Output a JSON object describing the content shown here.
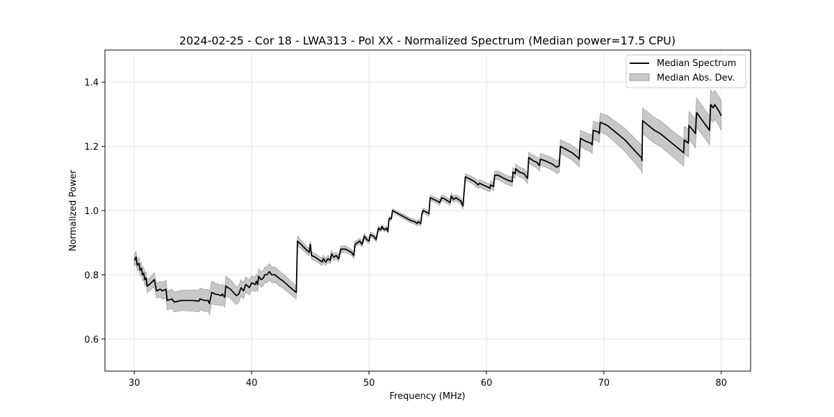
{
  "chart_data": {
    "type": "line",
    "title": "2024-02-25 - Cor 18 - LWA313 - Pol XX - Normalized Spectrum (Median power=17.5 CPU)",
    "xlabel": "Frequency (MHz)",
    "ylabel": "Normalized Power",
    "xlim": [
      27.5,
      82.5
    ],
    "ylim": [
      0.5,
      1.5
    ],
    "xticks": [
      30,
      40,
      50,
      60,
      70,
      80
    ],
    "yticks": [
      0.6,
      0.8,
      1.0,
      1.2,
      1.4
    ],
    "xtick_labels": [
      "30",
      "40",
      "50",
      "60",
      "70",
      "80"
    ],
    "ytick_labels": [
      "0.6",
      "0.8",
      "1.0",
      "1.2",
      "1.4"
    ],
    "grid": true,
    "legend_position": "top-right",
    "legend": [
      "Median Spectrum",
      "Median Abs. Dev."
    ],
    "colors": {
      "line": "#000000",
      "band": "#c8c8c8",
      "band_edge": "#a0a0a0",
      "grid": "#e6e6e6"
    },
    "series": [
      {
        "name": "Median Spectrum",
        "points": [
          [
            30.0,
            0.845
          ],
          [
            30.15,
            0.855
          ],
          [
            30.25,
            0.83
          ],
          [
            30.4,
            0.835
          ],
          [
            30.5,
            0.815
          ],
          [
            30.6,
            0.82
          ],
          [
            30.7,
            0.8
          ],
          [
            30.8,
            0.805
          ],
          [
            30.9,
            0.785
          ],
          [
            31.0,
            0.79
          ],
          [
            31.1,
            0.765
          ],
          [
            31.3,
            0.77
          ],
          [
            31.7,
            0.785
          ],
          [
            31.9,
            0.75
          ],
          [
            32.2,
            0.755
          ],
          [
            32.4,
            0.75
          ],
          [
            32.7,
            0.755
          ],
          [
            32.8,
            0.72
          ],
          [
            33.2,
            0.725
          ],
          [
            33.4,
            0.715
          ],
          [
            34.0,
            0.72
          ],
          [
            35.0,
            0.72
          ],
          [
            35.5,
            0.718
          ],
          [
            35.6,
            0.725
          ],
          [
            36.0,
            0.72
          ],
          [
            36.3,
            0.72
          ],
          [
            36.4,
            0.71
          ],
          [
            36.6,
            0.745
          ],
          [
            36.9,
            0.74
          ],
          [
            37.2,
            0.738
          ],
          [
            37.4,
            0.735
          ],
          [
            37.5,
            0.74
          ],
          [
            37.7,
            0.73
          ],
          [
            37.8,
            0.765
          ],
          [
            38.2,
            0.755
          ],
          [
            38.7,
            0.735
          ],
          [
            38.9,
            0.74
          ],
          [
            39.1,
            0.76
          ],
          [
            39.3,
            0.75
          ],
          [
            39.5,
            0.77
          ],
          [
            39.8,
            0.76
          ],
          [
            40.0,
            0.775
          ],
          [
            40.3,
            0.77
          ],
          [
            40.4,
            0.78
          ],
          [
            40.5,
            0.77
          ],
          [
            40.6,
            0.795
          ],
          [
            40.8,
            0.785
          ],
          [
            41.0,
            0.79
          ],
          [
            41.1,
            0.8
          ],
          [
            41.3,
            0.8
          ],
          [
            41.5,
            0.81
          ],
          [
            41.7,
            0.8
          ],
          [
            42.0,
            0.8
          ],
          [
            42.3,
            0.79
          ],
          [
            42.7,
            0.78
          ],
          [
            43.0,
            0.77
          ],
          [
            43.3,
            0.76
          ],
          [
            43.8,
            0.745
          ],
          [
            43.9,
            0.905
          ],
          [
            44.2,
            0.895
          ],
          [
            44.6,
            0.88
          ],
          [
            44.9,
            0.87
          ],
          [
            45.0,
            0.895
          ],
          [
            45.1,
            0.86
          ],
          [
            45.4,
            0.855
          ],
          [
            45.6,
            0.85
          ],
          [
            45.8,
            0.845
          ],
          [
            46.0,
            0.84
          ],
          [
            46.1,
            0.85
          ],
          [
            46.3,
            0.84
          ],
          [
            46.5,
            0.85
          ],
          [
            46.7,
            0.845
          ],
          [
            46.8,
            0.865
          ],
          [
            47.0,
            0.855
          ],
          [
            47.2,
            0.86
          ],
          [
            47.4,
            0.85
          ],
          [
            47.6,
            0.88
          ],
          [
            48.0,
            0.88
          ],
          [
            48.5,
            0.87
          ],
          [
            48.7,
            0.86
          ],
          [
            48.8,
            0.895
          ],
          [
            49.0,
            0.9
          ],
          [
            49.2,
            0.905
          ],
          [
            49.4,
            0.895
          ],
          [
            49.6,
            0.92
          ],
          [
            49.8,
            0.91
          ],
          [
            50.0,
            0.905
          ],
          [
            50.1,
            0.925
          ],
          [
            50.4,
            0.92
          ],
          [
            50.6,
            0.91
          ],
          [
            50.8,
            0.945
          ],
          [
            51.0,
            0.94
          ],
          [
            51.1,
            0.95
          ],
          [
            51.3,
            0.94
          ],
          [
            51.5,
            0.945
          ],
          [
            51.6,
            0.935
          ],
          [
            51.7,
            0.975
          ],
          [
            51.9,
            0.975
          ],
          [
            52.0,
            1.0
          ],
          [
            52.5,
            0.99
          ],
          [
            53.0,
            0.98
          ],
          [
            53.5,
            0.97
          ],
          [
            53.9,
            0.965
          ],
          [
            54.1,
            0.96
          ],
          [
            54.2,
            0.965
          ],
          [
            54.4,
            0.96
          ],
          [
            54.5,
            0.99
          ],
          [
            54.6,
            1.0
          ],
          [
            54.9,
            0.995
          ],
          [
            55.1,
            0.99
          ],
          [
            55.2,
            1.04
          ],
          [
            55.5,
            1.035
          ],
          [
            55.8,
            1.03
          ],
          [
            56.0,
            1.025
          ],
          [
            56.2,
            1.04
          ],
          [
            56.5,
            1.035
          ],
          [
            56.9,
            1.025
          ],
          [
            57.0,
            1.045
          ],
          [
            57.2,
            1.035
          ],
          [
            57.4,
            1.04
          ],
          [
            57.8,
            1.03
          ],
          [
            58.0,
            1.015
          ],
          [
            58.2,
            1.105
          ],
          [
            58.5,
            1.1
          ],
          [
            59.0,
            1.09
          ],
          [
            59.3,
            1.08
          ],
          [
            59.4,
            1.085
          ],
          [
            60.0,
            1.075
          ],
          [
            60.3,
            1.07
          ],
          [
            60.35,
            1.08
          ],
          [
            60.6,
            1.075
          ],
          [
            60.7,
            1.11
          ],
          [
            61.0,
            1.11
          ],
          [
            61.5,
            1.1
          ],
          [
            61.8,
            1.095
          ],
          [
            62.2,
            1.09
          ],
          [
            62.25,
            1.12
          ],
          [
            62.45,
            1.115
          ],
          [
            62.5,
            1.13
          ],
          [
            62.8,
            1.12
          ],
          [
            63.2,
            1.115
          ],
          [
            63.5,
            1.1
          ],
          [
            63.6,
            1.165
          ],
          [
            64.0,
            1.155
          ],
          [
            64.3,
            1.15
          ],
          [
            64.5,
            1.14
          ],
          [
            64.6,
            1.16
          ],
          [
            65.0,
            1.155
          ],
          [
            65.6,
            1.145
          ],
          [
            65.8,
            1.14
          ],
          [
            66.0,
            1.135
          ],
          [
            66.2,
            1.14
          ],
          [
            66.3,
            1.2
          ],
          [
            66.8,
            1.19
          ],
          [
            67.3,
            1.18
          ],
          [
            67.8,
            1.165
          ],
          [
            67.9,
            1.16
          ],
          [
            68.0,
            1.225
          ],
          [
            68.5,
            1.215
          ],
          [
            68.9,
            1.21
          ],
          [
            69.0,
            1.205
          ],
          [
            69.1,
            1.25
          ],
          [
            69.5,
            1.245
          ],
          [
            69.6,
            1.24
          ],
          [
            69.7,
            1.275
          ],
          [
            70.3,
            1.265
          ],
          [
            70.8,
            1.25
          ],
          [
            71.3,
            1.235
          ],
          [
            71.8,
            1.22
          ],
          [
            72.3,
            1.2
          ],
          [
            72.8,
            1.18
          ],
          [
            73.2,
            1.165
          ],
          [
            73.25,
            1.155
          ],
          [
            73.3,
            1.28
          ],
          [
            73.8,
            1.265
          ],
          [
            74.3,
            1.25
          ],
          [
            74.8,
            1.24
          ],
          [
            75.3,
            1.225
          ],
          [
            75.8,
            1.21
          ],
          [
            76.3,
            1.195
          ],
          [
            76.8,
            1.18
          ],
          [
            76.85,
            1.22
          ],
          [
            77.2,
            1.21
          ],
          [
            77.25,
            1.265
          ],
          [
            77.6,
            1.25
          ],
          [
            77.8,
            1.24
          ],
          [
            77.9,
            1.305
          ],
          [
            78.2,
            1.29
          ],
          [
            78.6,
            1.27
          ],
          [
            79.0,
            1.25
          ],
          [
            79.1,
            1.33
          ],
          [
            79.3,
            1.32
          ],
          [
            79.45,
            1.33
          ],
          [
            79.8,
            1.31
          ],
          [
            80.0,
            1.295
          ]
        ]
      },
      {
        "name": "Median Abs. Dev.",
        "band_halfwidth": [
          [
            30.0,
            0.018
          ],
          [
            31.5,
            0.02
          ],
          [
            33.0,
            0.03
          ],
          [
            35.0,
            0.033
          ],
          [
            36.5,
            0.035
          ],
          [
            38.0,
            0.03
          ],
          [
            40.0,
            0.022
          ],
          [
            41.5,
            0.025
          ],
          [
            43.8,
            0.02
          ],
          [
            44.0,
            0.012
          ],
          [
            48.0,
            0.01
          ],
          [
            52.0,
            0.006
          ],
          [
            55.0,
            0.008
          ],
          [
            58.0,
            0.01
          ],
          [
            62.0,
            0.014
          ],
          [
            66.0,
            0.02
          ],
          [
            70.0,
            0.03
          ],
          [
            73.2,
            0.04
          ],
          [
            76.0,
            0.04
          ],
          [
            78.0,
            0.045
          ],
          [
            80.0,
            0.045
          ]
        ]
      }
    ]
  }
}
